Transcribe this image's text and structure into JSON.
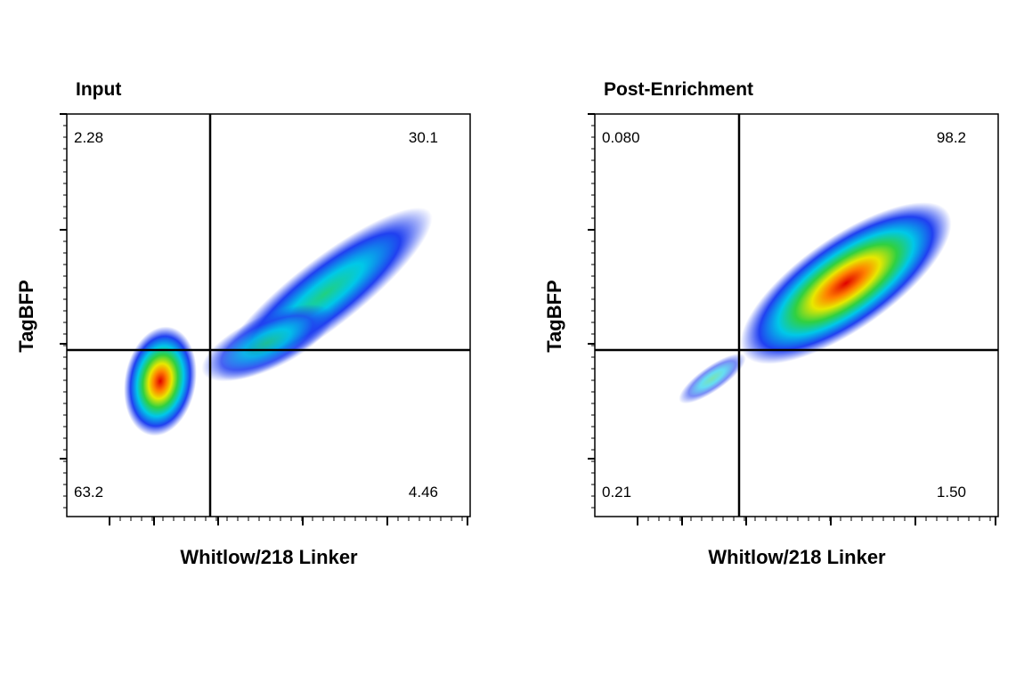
{
  "chart_data": [
    {
      "type": "quadrant",
      "title": "Input",
      "x_label": "Whitlow/218 Linker",
      "y_label": "TagBFP",
      "values": [
        2.28,
        30.1,
        63.2,
        4.46
      ]
    },
    {
      "type": "quadrant",
      "title": "Post-Enrichment",
      "x_label": "Whitlow/218 Linker",
      "y_label": "TagBFP",
      "values": [
        0.08,
        98.2,
        0.21,
        1.5
      ],
      "value_labels": [
        "0.080",
        "98.2",
        "0.21",
        "1.50"
      ]
    }
  ]
}
